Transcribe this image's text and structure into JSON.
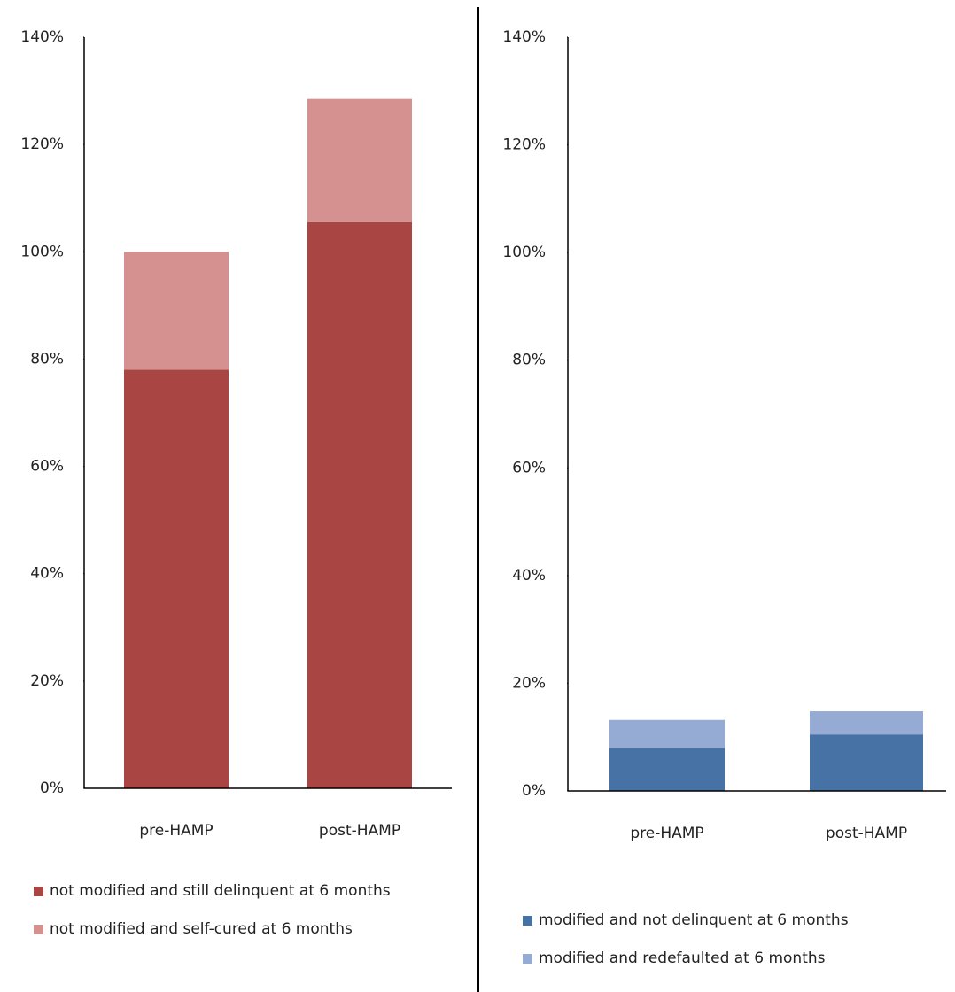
{
  "chart_data": [
    {
      "type": "bar",
      "stacked": true,
      "categories": [
        "pre-HAMP",
        "post-HAMP"
      ],
      "series": [
        {
          "name": "not modified and still delinquent at 6 months",
          "color": "#a94542",
          "values": [
            78,
            105.5
          ]
        },
        {
          "name": "not modified and self-cured at 6 months",
          "color": "#d4918f",
          "values": [
            22,
            23
          ]
        }
      ],
      "ylim": [
        0,
        140
      ],
      "yticks": [
        {
          "value": 0,
          "label": "0%"
        },
        {
          "value": 20,
          "label": "20%"
        },
        {
          "value": 40,
          "label": "40%"
        },
        {
          "value": 60,
          "label": "60%"
        },
        {
          "value": 80,
          "label": "80%"
        },
        {
          "value": 100,
          "label": "100%"
        },
        {
          "value": 120,
          "label": "120%"
        },
        {
          "value": 140,
          "label": "140%"
        }
      ]
    },
    {
      "type": "bar",
      "stacked": true,
      "categories": [
        "pre-HAMP",
        "post-HAMP"
      ],
      "series": [
        {
          "name": "modified and not delinquent at 6 months",
          "color": "#4672a6",
          "values": [
            8,
            10.5
          ]
        },
        {
          "name": "modified and redefaulted at 6 months",
          "color": "#95abd4",
          "values": [
            5.2,
            4.3
          ]
        }
      ],
      "ylim": [
        0,
        140
      ],
      "yticks": [
        {
          "value": 0,
          "label": "0%"
        },
        {
          "value": 20,
          "label": "20%"
        },
        {
          "value": 40,
          "label": "40%"
        },
        {
          "value": 60,
          "label": "60%"
        },
        {
          "value": 80,
          "label": "80%"
        },
        {
          "value": 100,
          "label": "100%"
        },
        {
          "value": 120,
          "label": "120%"
        },
        {
          "value": 140,
          "label": "140%"
        }
      ]
    }
  ]
}
